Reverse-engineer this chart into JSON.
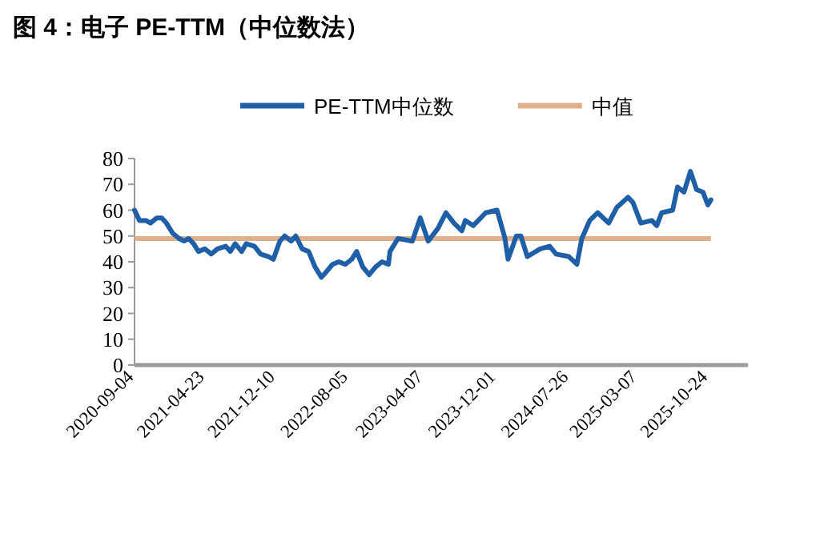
{
  "chart_data": {
    "type": "line",
    "title": "图 4：电子 PE-TTM（中位数法）",
    "x": [
      "2020-09-04",
      "2020-09-20",
      "2020-10-11",
      "2020-10-26",
      "2020-11-16",
      "2020-12-02",
      "2020-12-17",
      "2021-01-07",
      "2021-01-28",
      "2021-02-13",
      "2021-02-28",
      "2021-03-16",
      "2021-04-01",
      "2021-04-22",
      "2021-05-13",
      "2021-06-02",
      "2021-06-29",
      "2021-07-14",
      "2021-07-30",
      "2021-08-20",
      "2021-09-04",
      "2021-10-01",
      "2021-10-21",
      "2021-11-16",
      "2021-12-02",
      "2021-12-23",
      "2022-01-08",
      "2022-01-29",
      "2022-02-13",
      "2022-03-06",
      "2022-03-27",
      "2022-04-17",
      "2022-05-08",
      "2022-05-23",
      "2022-06-13",
      "2022-07-04",
      "2022-07-25",
      "2022-08-15",
      "2022-08-31",
      "2022-09-20",
      "2022-10-11",
      "2022-11-01",
      "2022-11-22",
      "2022-12-13",
      "2022-12-18",
      "2023-01-13",
      "2023-03-01",
      "2023-03-27",
      "2023-04-22",
      "2023-05-24",
      "2023-06-19",
      "2023-07-15",
      "2023-08-10",
      "2023-08-21",
      "2023-09-16",
      "2023-10-27",
      "2023-12-03",
      "2023-12-29",
      "2024-01-08",
      "2024-02-04",
      "2024-02-19",
      "2024-03-11",
      "2024-04-22",
      "2024-05-23",
      "2024-06-13",
      "2024-07-25",
      "2024-08-20",
      "2024-09-05",
      "2024-10-01",
      "2024-10-27",
      "2024-12-02",
      "2024-12-28",
      "2025-02-03",
      "2025-02-19",
      "2025-03-17",
      "2025-04-22",
      "2025-05-08",
      "2025-05-24",
      "2025-06-29",
      "2025-07-15",
      "2025-08-05",
      "2025-08-26",
      "2025-09-15",
      "2025-10-06",
      "2025-10-22",
      "2025-11-01"
    ],
    "series": [
      {
        "name": "PE-TTM中位数",
        "color": "#1f5fa8",
        "values": [
          60,
          56,
          56,
          55,
          57,
          57,
          55,
          51,
          49,
          48,
          49,
          47,
          44,
          45,
          43,
          45,
          46,
          44,
          47,
          44,
          47,
          46,
          43,
          42,
          41,
          48,
          50,
          48,
          50,
          45,
          44,
          38,
          34,
          36,
          39,
          40,
          39,
          41,
          44,
          38,
          35,
          38,
          40,
          39,
          44,
          49,
          48,
          57,
          48,
          53,
          59,
          55,
          52,
          56,
          54,
          59,
          60,
          49,
          41,
          50,
          50,
          42,
          45,
          46,
          43,
          42,
          39,
          49,
          56,
          59,
          55,
          61,
          65,
          63,
          55,
          56,
          54,
          59,
          60,
          69,
          67,
          75,
          68,
          67,
          62,
          64
        ]
      }
    ],
    "ref_lines": [
      {
        "axis": "y",
        "value": 49,
        "label": "中值",
        "color": "#e0b08a"
      }
    ],
    "xlim": [
      "2020-09-04",
      "2026-03-02"
    ],
    "xticks": [
      "2020-09-04",
      "2021-04-23",
      "2021-12-10",
      "2022-08-05",
      "2023-04-07",
      "2023-12-01",
      "2024-07-26",
      "2025-03-07",
      "2025-10-24"
    ],
    "ylim": [
      0,
      80
    ],
    "yticks": [
      0,
      10,
      20,
      30,
      40,
      50,
      60,
      70,
      80
    ],
    "legend": "top",
    "grid": false
  }
}
